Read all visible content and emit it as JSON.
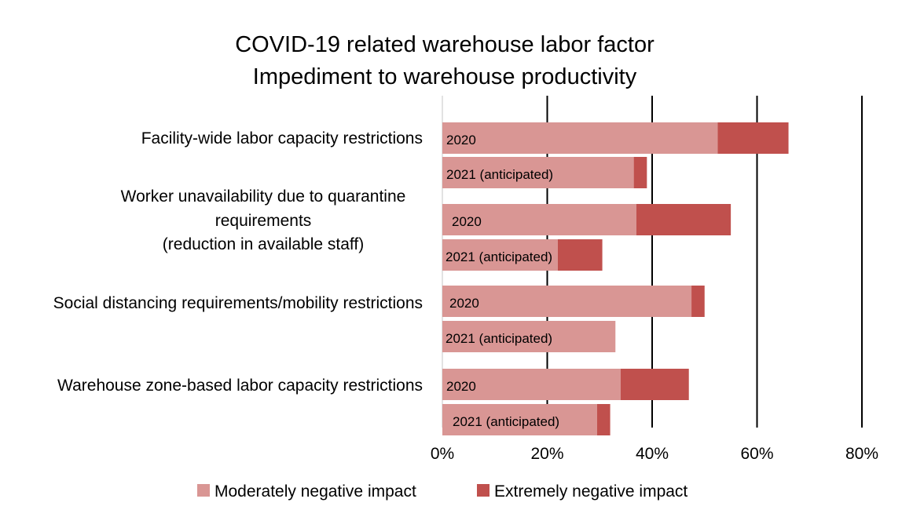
{
  "chart_data": {
    "type": "bar",
    "orientation": "horizontal",
    "stacked": true,
    "title_lines": [
      "COVID-19 related warehouse labor factor",
      "Impediment to warehouse productivity"
    ],
    "categories": [
      {
        "label_lines": [
          "Facility-wide labor capacity restrictions"
        ]
      },
      {
        "label_lines": [
          "Worker unavailability due to quarantine",
          "requirements",
          "(reduction in available staff)"
        ]
      },
      {
        "label_lines": [
          "Social distancing requirements/mobility restrictions"
        ]
      },
      {
        "label_lines": [
          "Warehouse zone-based labor capacity restrictions"
        ]
      }
    ],
    "bar_labels": [
      "2020",
      "2021 (anticipated)"
    ],
    "series": [
      {
        "name": "Moderately negative impact",
        "color": "#d99694",
        "values": [
          [
            52.5,
            36.5
          ],
          [
            37,
            22
          ],
          [
            47.5,
            33
          ],
          [
            34,
            29.5
          ]
        ]
      },
      {
        "name": "Extremely negative impact",
        "color": "#c0504d",
        "values": [
          [
            13.5,
            2.5
          ],
          [
            18,
            8.5
          ],
          [
            2.5,
            0
          ],
          [
            13,
            2.5
          ]
        ]
      }
    ],
    "x_ticks": [
      "0%",
      "20%",
      "40%",
      "60%",
      "80%"
    ],
    "xlim": [
      0,
      80
    ],
    "grid": true,
    "legend_position": "bottom"
  }
}
